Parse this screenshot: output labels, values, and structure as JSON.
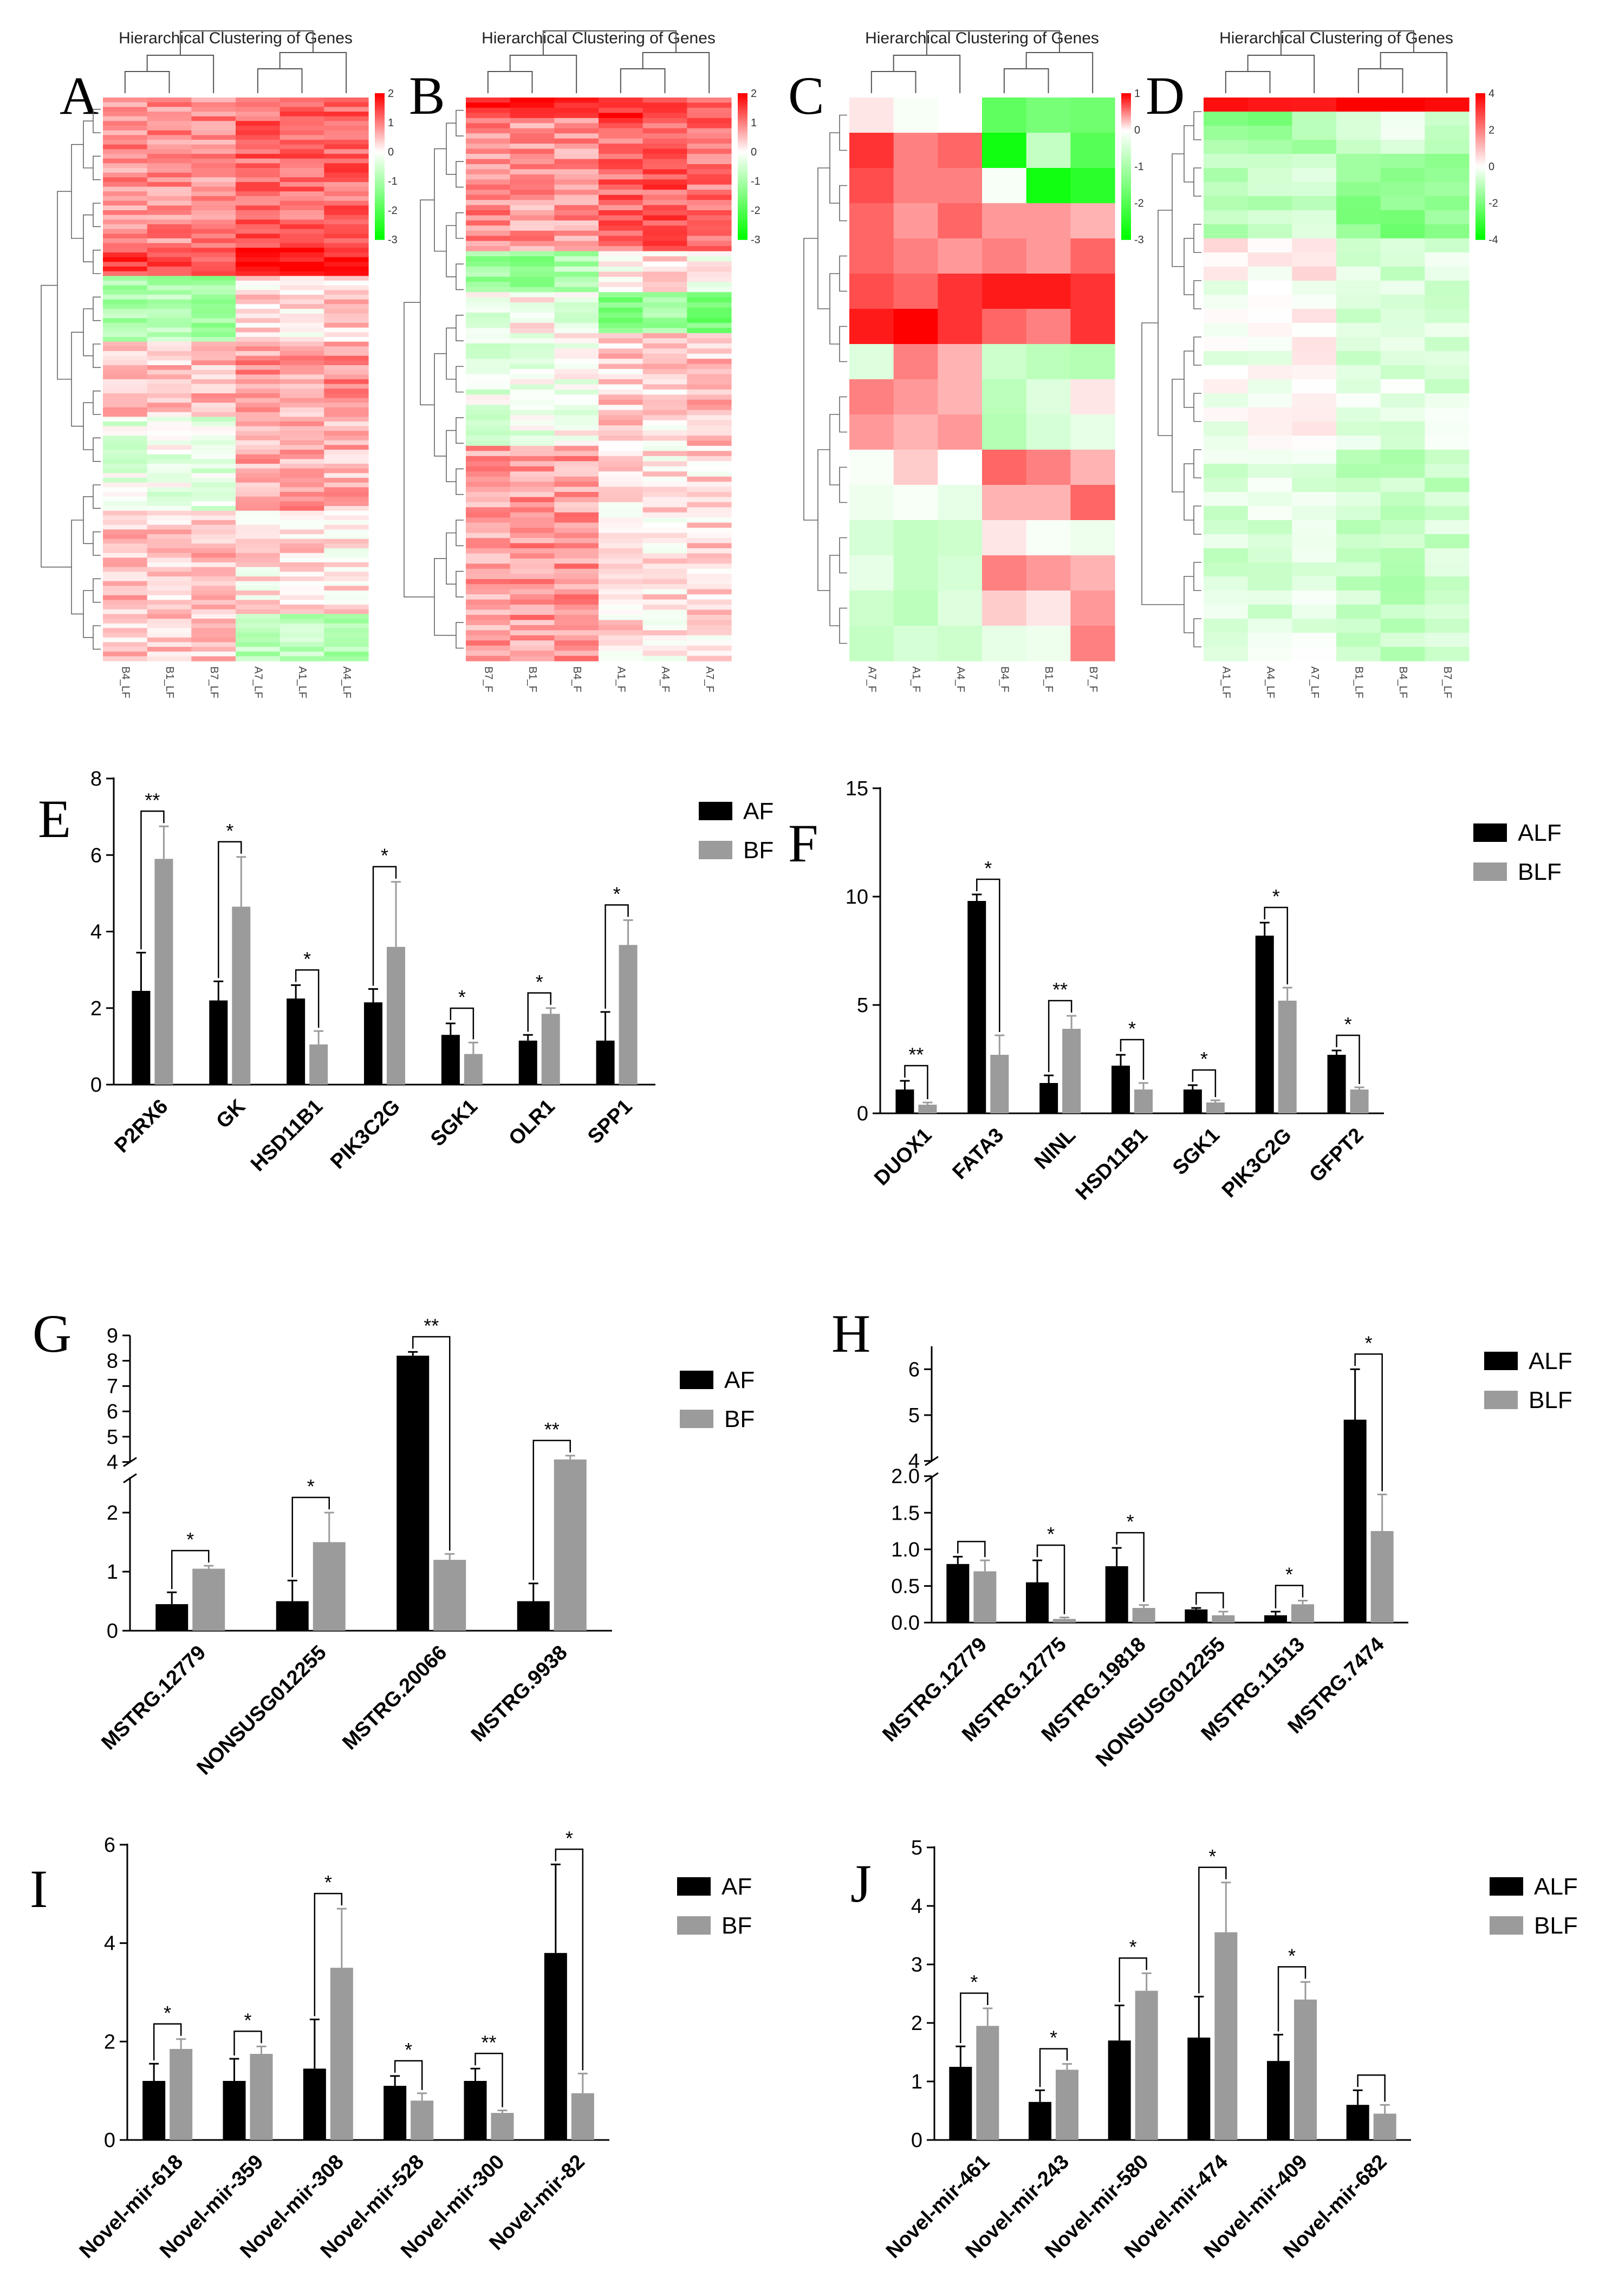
{
  "colors": {
    "group1": "#000000",
    "group2": "#9b9b9b",
    "hm_high": "#ff0000",
    "hm_low": "#00ff00",
    "hm_mid": "#ffffff"
  },
  "heatmaps": [
    {
      "panel": "A",
      "title": "Hierarchical Clustering of Genes",
      "samples": [
        "B4_LF",
        "B1_LF",
        "B7_LF",
        "A7_LF",
        "A1_LF",
        "A4_LF"
      ],
      "colorbar": [
        2,
        1,
        0,
        -1,
        -2,
        -3
      ],
      "rows": 120,
      "blocks": [
        {
          "rows": 32,
          "pattern": [
            0.9,
            0.9,
            0.9,
            1.2,
            1.2,
            1.2
          ]
        },
        {
          "rows": 6,
          "pattern": [
            1.5,
            1.5,
            1.5,
            1.9,
            1.9,
            1.9
          ]
        },
        {
          "rows": 14,
          "pattern": [
            -1.0,
            -0.9,
            -1.1,
            0.3,
            0.2,
            0.4
          ]
        },
        {
          "rows": 16,
          "pattern": [
            0.6,
            0.5,
            0.6,
            0.8,
            0.7,
            0.9
          ]
        },
        {
          "rows": 20,
          "pattern": [
            -0.3,
            -0.2,
            -0.3,
            0.6,
            0.7,
            0.6
          ]
        },
        {
          "rows": 22,
          "pattern": [
            0.5,
            0.4,
            0.5,
            0.2,
            0.3,
            0.2
          ]
        },
        {
          "rows": 10,
          "pattern": [
            0.4,
            0.4,
            0.4,
            -0.8,
            -0.7,
            -0.9
          ]
        }
      ]
    },
    {
      "panel": "B",
      "title": "Hierarchical Clustering of Genes",
      "samples": [
        "B7_F",
        "B1_F",
        "B4_F",
        "A1_F",
        "A4_F",
        "A7_F"
      ],
      "colorbar": [
        2,
        1,
        0,
        -1,
        -2,
        -3
      ],
      "rows": 110,
      "blocks": [
        {
          "rows": 4,
          "pattern": [
            1.8,
            1.9,
            1.8,
            1.6,
            1.5,
            1.4
          ]
        },
        {
          "rows": 26,
          "pattern": [
            0.9,
            0.8,
            0.8,
            1.2,
            1.3,
            1.1
          ]
        },
        {
          "rows": 8,
          "pattern": [
            -1.2,
            -1.3,
            -0.9,
            0.1,
            0.2,
            0.0
          ]
        },
        {
          "rows": 8,
          "pattern": [
            -0.2,
            0.1,
            -0.3,
            -1.5,
            -1.2,
            -1.6
          ]
        },
        {
          "rows": 22,
          "pattern": [
            -0.3,
            -0.2,
            -0.1,
            0.4,
            0.3,
            0.5
          ]
        },
        {
          "rows": 42,
          "pattern": [
            0.7,
            0.8,
            0.8,
            0.3,
            0.2,
            0.3
          ]
        }
      ]
    },
    {
      "panel": "C",
      "title": "Hierarchical Clustering of Genes",
      "samples": [
        "A7_F",
        "A1_F",
        "A4_F",
        "B4_F",
        "B1_F",
        "B7_F"
      ],
      "colorbar": [
        1,
        0,
        -1,
        -2,
        -3
      ],
      "rows": 16,
      "matrix": [
        [
          0.1,
          -0.1,
          0.0,
          -1.9,
          -1.6,
          -1.7
        ],
        [
          0.8,
          0.5,
          0.6,
          -2.8,
          -0.7,
          -2.0
        ],
        [
          0.7,
          0.5,
          0.5,
          -0.1,
          -2.8,
          -2.5
        ],
        [
          0.6,
          0.4,
          0.6,
          0.4,
          0.4,
          0.3
        ],
        [
          0.6,
          0.5,
          0.4,
          0.5,
          0.4,
          0.6
        ],
        [
          0.7,
          0.6,
          0.8,
          0.9,
          0.9,
          0.8
        ],
        [
          0.9,
          1.0,
          0.8,
          0.6,
          0.5,
          0.8
        ],
        [
          -0.4,
          0.5,
          0.3,
          -0.6,
          -0.8,
          -0.9
        ],
        [
          0.5,
          0.4,
          0.3,
          -0.8,
          -0.4,
          0.1
        ],
        [
          0.4,
          0.3,
          0.4,
          -0.9,
          -0.5,
          -0.3
        ],
        [
          -0.1,
          0.2,
          0.0,
          0.6,
          0.5,
          0.3
        ],
        [
          -0.2,
          -0.1,
          -0.3,
          0.3,
          0.3,
          0.6
        ],
        [
          -0.5,
          -0.7,
          -0.6,
          0.1,
          -0.1,
          -0.2
        ],
        [
          -0.3,
          -0.7,
          -0.5,
          0.5,
          0.4,
          0.3
        ],
        [
          -0.6,
          -0.8,
          -0.4,
          0.2,
          0.1,
          0.4
        ],
        [
          -0.7,
          -0.5,
          -0.6,
          -0.3,
          -0.2,
          0.5
        ]
      ]
    },
    {
      "panel": "D",
      "title": "Hierarchical Clustering of Genes",
      "samples": [
        "A1_LF",
        "A4_LF",
        "A7_LF",
        "B1_LF",
        "B4_LF",
        "B7_LF"
      ],
      "colorbar": [
        4,
        2,
        0,
        -2,
        -4
      ],
      "rows": 40,
      "blocks": [
        {
          "rows": 1,
          "pattern": [
            4.0,
            4.0,
            4.0,
            4.0,
            4.0,
            4.0
          ]
        },
        {
          "rows": 3,
          "pattern": [
            -1.6,
            -1.8,
            -1.5,
            -0.6,
            -0.5,
            -0.7
          ]
        },
        {
          "rows": 6,
          "pattern": [
            -1.0,
            -0.9,
            -0.8,
            -1.8,
            -1.9,
            -1.7
          ]
        },
        {
          "rows": 3,
          "pattern": [
            0.4,
            0.2,
            0.3,
            -0.7,
            -0.8,
            -0.6
          ]
        },
        {
          "rows": 12,
          "pattern": [
            -0.2,
            -0.1,
            0.1,
            -0.5,
            -0.4,
            -0.5
          ]
        },
        {
          "rows": 15,
          "pattern": [
            -0.6,
            -0.5,
            -0.4,
            -0.9,
            -1.0,
            -0.8
          ]
        }
      ]
    }
  ],
  "chart_data": [
    {
      "panel": "E",
      "type": "bar",
      "ylim": [
        0,
        8
      ],
      "yticks": [
        0,
        2,
        4,
        6,
        8
      ],
      "legend": [
        "AF",
        "BF"
      ],
      "categories": [
        "P2RX6",
        "GK",
        "HSD11B1",
        "PIK3C2G",
        "SGK1",
        "OLR1",
        "SPP1"
      ],
      "series": [
        {
          "name": "AF",
          "values": [
            2.45,
            2.2,
            2.25,
            2.15,
            1.3,
            1.15,
            1.15
          ],
          "errors": [
            1.0,
            0.5,
            0.35,
            0.35,
            0.3,
            0.15,
            0.75
          ]
        },
        {
          "name": "BF",
          "values": [
            5.9,
            4.65,
            1.05,
            3.6,
            0.8,
            1.85,
            3.65
          ],
          "errors": [
            0.85,
            1.3,
            0.35,
            1.7,
            0.3,
            0.15,
            0.65
          ]
        }
      ],
      "significance": [
        "**",
        "*",
        "*",
        "*",
        "*",
        "*",
        "*"
      ]
    },
    {
      "panel": "F",
      "type": "bar",
      "ylim": [
        0,
        15
      ],
      "yticks": [
        0,
        5,
        10,
        15
      ],
      "legend": [
        "ALF",
        "BLF"
      ],
      "categories": [
        "DUOX1",
        "FATA3",
        "NINL",
        "HSD11B1",
        "SGK1",
        "PIK3C2G",
        "GFPT2"
      ],
      "series": [
        {
          "name": "ALF",
          "values": [
            1.1,
            9.8,
            1.4,
            2.2,
            1.1,
            8.2,
            2.7
          ],
          "errors": [
            0.4,
            0.3,
            0.35,
            0.5,
            0.2,
            0.6,
            0.2
          ]
        },
        {
          "name": "BLF",
          "values": [
            0.4,
            2.7,
            3.9,
            1.1,
            0.5,
            5.2,
            1.1
          ],
          "errors": [
            0.1,
            0.9,
            0.6,
            0.3,
            0.1,
            0.6,
            0.1
          ]
        }
      ],
      "significance": [
        "**",
        "*",
        "**",
        "*",
        "*",
        "*",
        "*"
      ]
    },
    {
      "panel": "G",
      "type": "bar",
      "broken_axis": true,
      "ylim_lower": [
        0,
        2.6
      ],
      "ylim_upper": [
        4,
        9
      ],
      "yticks": [
        0,
        1,
        2,
        4,
        5,
        6,
        7,
        8,
        9
      ],
      "legend": [
        "AF",
        "BF"
      ],
      "categories": [
        "MSTRG.12779",
        "NONSUSG012255",
        "MSTRG.20066",
        "MSTRG.9938"
      ],
      "series": [
        {
          "name": "AF",
          "values": [
            0.45,
            0.5,
            8.2,
            0.5
          ],
          "errors": [
            0.2,
            0.35,
            0.15,
            0.3
          ]
        },
        {
          "name": "BF",
          "values": [
            1.05,
            1.5,
            1.2,
            4.1
          ],
          "errors": [
            0.05,
            0.5,
            0.1,
            0.15
          ]
        }
      ],
      "significance": [
        "*",
        "*",
        "**",
        "**"
      ]
    },
    {
      "panel": "H",
      "type": "bar",
      "broken_axis": true,
      "ylim_lower": [
        0,
        2.0
      ],
      "ylim_upper": [
        4,
        6.5
      ],
      "yticks": [
        "0.0",
        "0.5",
        "1.0",
        "1.5",
        "2.0",
        "4",
        "5",
        "6"
      ],
      "legend": [
        "ALF",
        "BLF"
      ],
      "categories": [
        "MSTRG.12779",
        "MSTRG.12775",
        "MSTRG.19818",
        "NONSUSG012255",
        "MSTRG.11513",
        "MSTRG.7474"
      ],
      "series": [
        {
          "name": "ALF",
          "values": [
            0.8,
            0.55,
            0.77,
            0.18,
            0.1,
            4.9
          ],
          "errors": [
            0.1,
            0.3,
            0.25,
            0.02,
            0.05,
            1.1
          ]
        },
        {
          "name": "BLF",
          "values": [
            0.7,
            0.05,
            0.2,
            0.1,
            0.25,
            1.25
          ],
          "errors": [
            0.15,
            0.02,
            0.04,
            0.05,
            0.05,
            0.5
          ]
        }
      ],
      "significance": [
        "",
        "*",
        "*",
        "",
        "*",
        "*"
      ]
    },
    {
      "panel": "I",
      "type": "bar",
      "ylim": [
        0,
        6
      ],
      "yticks": [
        0,
        2,
        4,
        6
      ],
      "legend": [
        "AF",
        "BF"
      ],
      "categories": [
        "Novel-mir-618",
        "Novel-mir-359",
        "Novel-mir-308",
        "Novel-mir-528",
        "Novel-mir-300",
        "Novel-mir-82"
      ],
      "series": [
        {
          "name": "AF",
          "values": [
            1.2,
            1.2,
            1.45,
            1.1,
            1.2,
            3.8
          ],
          "errors": [
            0.35,
            0.45,
            1.0,
            0.2,
            0.25,
            1.8
          ]
        },
        {
          "name": "BF",
          "values": [
            1.85,
            1.75,
            3.5,
            0.8,
            0.55,
            0.95
          ],
          "errors": [
            0.2,
            0.15,
            1.2,
            0.15,
            0.05,
            0.4
          ]
        }
      ],
      "significance": [
        "*",
        "*",
        "*",
        "*",
        "**",
        "*"
      ]
    },
    {
      "panel": "J",
      "type": "bar",
      "ylim": [
        0,
        5
      ],
      "yticks": [
        0,
        1,
        2,
        3,
        4,
        5
      ],
      "legend": [
        "ALF",
        "BLF"
      ],
      "categories": [
        "Novel-mir-461",
        "Novel-mir-243",
        "Novel-mir-580",
        "Novel-mir-474",
        "Novel-mir-409",
        "Novel-mir-682"
      ],
      "series": [
        {
          "name": "ALF",
          "values": [
            1.25,
            0.65,
            1.7,
            1.75,
            1.35,
            0.6
          ],
          "errors": [
            0.35,
            0.2,
            0.6,
            0.7,
            0.45,
            0.25
          ]
        },
        {
          "name": "BLF",
          "values": [
            1.95,
            1.2,
            2.55,
            3.55,
            2.4,
            0.45
          ],
          "errors": [
            0.3,
            0.1,
            0.3,
            0.85,
            0.3,
            0.15
          ]
        }
      ],
      "significance": [
        "*",
        "*",
        "*",
        "*",
        "*",
        ""
      ]
    }
  ]
}
